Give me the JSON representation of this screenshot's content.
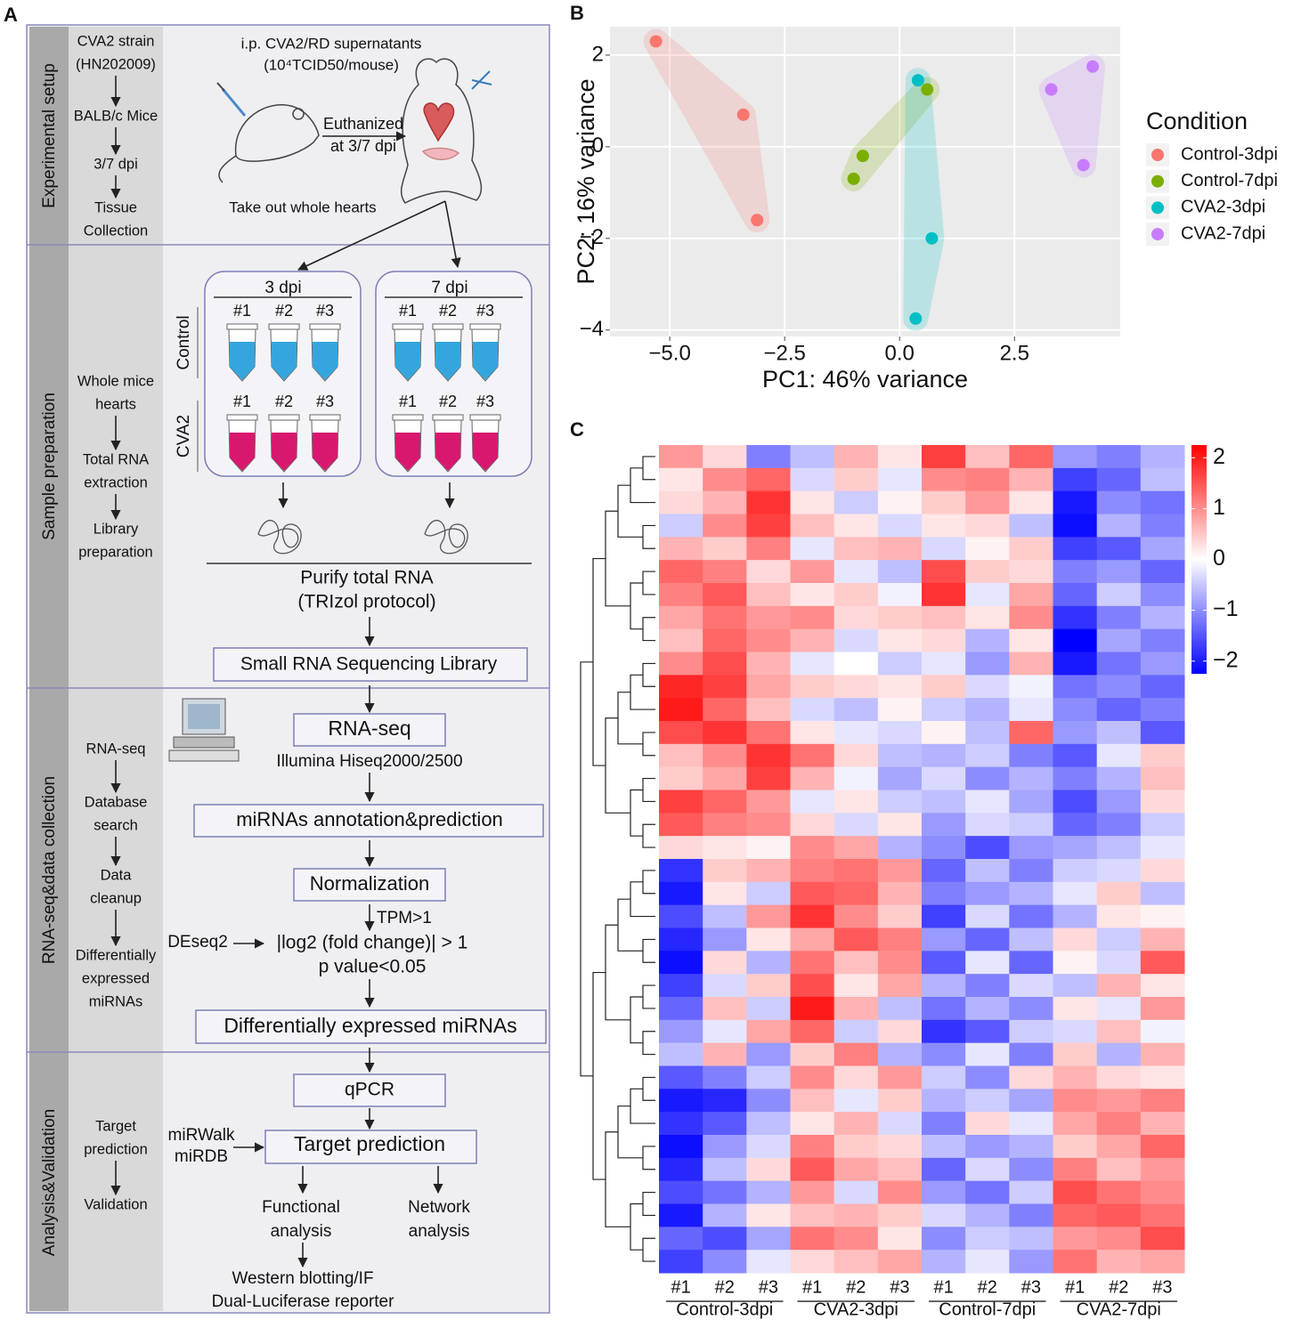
{
  "panel_labels": [
    "A",
    "B",
    "C"
  ],
  "workflow": {
    "sections": [
      {
        "title": "Experimental setup",
        "steps": [
          [
            "CVA2 strain",
            "(HN202009)"
          ],
          [
            "BALB/c Mice"
          ],
          [
            "3/7 dpi"
          ],
          [
            "Tissue",
            "Collection"
          ]
        ]
      },
      {
        "title": "Sample preparation",
        "steps": [
          [
            "Whole mice",
            "hearts"
          ],
          [
            "Total RNA",
            "extraction"
          ],
          [
            "Library",
            "preparation"
          ]
        ]
      },
      {
        "title": "RNA-seq&data collection",
        "steps": [
          [
            "RNA-seq"
          ],
          [
            "Database",
            "search"
          ],
          [
            "Data",
            "cleanup"
          ],
          [
            "Differentially",
            "expressed",
            "miRNAs"
          ]
        ]
      },
      {
        "title": "Analysis&Validation",
        "steps": [
          [
            "Target",
            "prediction"
          ],
          [
            "Validation"
          ]
        ]
      }
    ],
    "injection": "i.p. CVA2/RD supernatants",
    "dose": "(10⁴TCID50/mouse)",
    "euthanized": [
      "Euthanized",
      "at 3/7 dpi"
    ],
    "hearts": "Take out whole hearts",
    "timepoints": [
      "3 dpi",
      "7 dpi"
    ],
    "groups": [
      "Control",
      "CVA2"
    ],
    "replicates": [
      "#1",
      "#2",
      "#3"
    ],
    "purify": [
      "Purify total RNA",
      "(TRIzol protocol)"
    ],
    "library": "Small RNA Sequencing Library",
    "rnaseq": "RNA-seq",
    "illumina": "Illumina Hiseq2000/2500",
    "annotation": "miRNAs annotation&prediction",
    "normalization": "Normalization",
    "tpm": "TPM>1",
    "deseq": "DEseq2",
    "criteria": [
      "|log2 (fold change)| > 1",
      "p value<0.05"
    ],
    "dem": "Differentially expressed miRNAs",
    "qpcr": "qPCR",
    "tools": [
      "miRWalk",
      "miRDB"
    ],
    "target": "Target prediction",
    "functional": [
      "Functional",
      "analysis"
    ],
    "network": [
      "Network",
      "analysis"
    ],
    "validation": [
      "Western blotting/IF",
      "Dual-Luciferase reporter"
    ]
  },
  "chart_data": [
    {
      "type": "scatter",
      "xlabel": "PC1: 46% variance",
      "ylabel": "PC2: 16% variance",
      "legend_title": "Condition",
      "legend": "right",
      "xlim": [
        -6.3,
        4.8
      ],
      "ylim": [
        -4.14,
        2.62
      ],
      "xticks": [
        {
          "value": -5,
          "label": "−5.0"
        },
        {
          "value": -2.5,
          "label": "−2.5"
        },
        {
          "value": 0,
          "label": "0.0"
        },
        {
          "value": 2.5,
          "label": "2.5"
        }
      ],
      "yticks": [
        {
          "value": -4,
          "label": "−4"
        },
        {
          "value": -2,
          "label": "−2"
        },
        0,
        2
      ],
      "grid": true,
      "series": [
        {
          "name": "Control-3dpi",
          "color": "#F8766D",
          "x": [
            -5.3,
            -3.4,
            -3.1
          ],
          "y": [
            2.3,
            0.7,
            -1.6
          ]
        },
        {
          "name": "Control-7dpi",
          "color": "#7CAE00",
          "x": [
            -1.0,
            -0.8,
            0.6
          ],
          "y": [
            -0.7,
            -0.2,
            1.25
          ]
        },
        {
          "name": "CVA2-3dpi",
          "color": "#00BFC4",
          "x": [
            0.4,
            0.7,
            0.35
          ],
          "y": [
            1.45,
            -2.0,
            -3.75
          ]
        },
        {
          "name": "CVA2-7dpi",
          "color": "#C77CFF",
          "x": [
            3.3,
            4.2,
            4.0
          ],
          "y": [
            1.25,
            1.75,
            -0.4
          ]
        }
      ]
    },
    {
      "type": "heatmap",
      "columns": [
        "#1",
        "#2",
        "#3",
        "#1",
        "#2",
        "#3",
        "#1",
        "#2",
        "#3",
        "#1",
        "#2",
        "#3"
      ],
      "column_groups": [
        "Control-3dpi",
        "CVA2-3dpi",
        "Control-7dpi",
        "CVA2-7dpi"
      ],
      "colors": [
        "#0000ff",
        "#ffffff",
        "#ff0000"
      ],
      "zlim": [
        -2,
        2
      ],
      "colorbar_lim": [
        -2.25,
        2.25
      ],
      "colorbar_ticks": [
        {
          "value": -2,
          "label": "−2"
        },
        {
          "value": -1,
          "label": "−1"
        },
        0,
        1,
        2
      ],
      "values": [
        [
          0.8,
          0.3,
          -1.0,
          -0.5,
          0.6,
          0.2,
          1.5,
          0.5,
          1.2,
          -0.8,
          -1.0,
          -0.6
        ],
        [
          0.2,
          0.9,
          1.2,
          -0.3,
          0.4,
          -0.2,
          0.9,
          1.0,
          0.6,
          -1.5,
          -1.2,
          -0.5
        ],
        [
          0.3,
          0.6,
          1.6,
          0.2,
          -0.4,
          0.1,
          0.4,
          0.8,
          0.2,
          -1.8,
          -0.9,
          -1.1
        ],
        [
          -0.4,
          0.9,
          1.5,
          0.5,
          0.2,
          -0.3,
          0.2,
          0.3,
          -0.5,
          -1.9,
          -0.6,
          -1.0
        ],
        [
          0.6,
          0.4,
          1.0,
          -0.2,
          0.5,
          0.6,
          -0.3,
          0.1,
          0.4,
          -1.5,
          -1.3,
          -0.7
        ],
        [
          1.2,
          1.0,
          0.3,
          0.8,
          -0.2,
          -0.5,
          1.4,
          0.4,
          0.3,
          -1.0,
          -0.8,
          -1.2
        ],
        [
          1.0,
          1.3,
          0.5,
          0.2,
          0.4,
          -0.1,
          1.6,
          -0.2,
          0.7,
          -1.2,
          -0.4,
          -0.9
        ],
        [
          0.7,
          1.1,
          0.8,
          0.9,
          0.3,
          0.4,
          0.5,
          0.2,
          0.9,
          -1.6,
          -1.0,
          -0.6
        ],
        [
          0.5,
          1.2,
          0.9,
          0.6,
          -0.3,
          0.2,
          0.3,
          -0.6,
          0.2,
          -2.0,
          -0.7,
          -1.0
        ],
        [
          0.9,
          1.4,
          0.6,
          -0.2,
          0.0,
          -0.4,
          -0.2,
          -0.8,
          0.6,
          -1.8,
          -1.1,
          -0.8
        ],
        [
          1.7,
          1.5,
          0.7,
          0.4,
          0.3,
          0.2,
          0.4,
          -0.3,
          -0.1,
          -1.1,
          -0.9,
          -1.2
        ],
        [
          1.8,
          1.2,
          0.5,
          -0.3,
          -0.5,
          0.1,
          -0.4,
          -0.6,
          -0.2,
          -0.9,
          -1.2,
          -1.0
        ],
        [
          1.4,
          1.6,
          1.1,
          0.2,
          -0.2,
          -0.3,
          0.1,
          -0.5,
          1.2,
          -0.8,
          -0.5,
          -1.3
        ],
        [
          0.5,
          0.9,
          1.6,
          1.1,
          0.3,
          -0.5,
          -0.6,
          -0.4,
          -1.0,
          -1.3,
          -0.2,
          0.4
        ],
        [
          0.4,
          0.7,
          1.5,
          0.6,
          -0.1,
          -0.7,
          -0.3,
          -0.9,
          -0.6,
          -1.0,
          -0.6,
          0.5
        ],
        [
          1.5,
          1.2,
          0.8,
          -0.2,
          0.2,
          -0.4,
          -0.5,
          -0.2,
          -0.7,
          -1.4,
          -0.8,
          0.3
        ],
        [
          1.3,
          1.0,
          0.9,
          0.3,
          -0.3,
          0.2,
          -0.8,
          -0.3,
          -0.4,
          -1.2,
          -1.0,
          -0.4
        ],
        [
          0.3,
          0.2,
          0.1,
          0.9,
          0.7,
          -0.6,
          -0.9,
          -1.4,
          -0.8,
          -0.7,
          -0.5,
          -0.2
        ],
        [
          -1.6,
          0.4,
          0.6,
          1.0,
          1.1,
          0.8,
          -1.2,
          -0.5,
          -1.0,
          -0.4,
          -0.3,
          0.3
        ],
        [
          -1.8,
          0.2,
          -0.4,
          1.3,
          1.2,
          0.6,
          -1.0,
          -0.8,
          -0.6,
          -0.2,
          0.4,
          -0.5
        ],
        [
          -1.4,
          -0.5,
          0.8,
          1.6,
          0.9,
          0.4,
          -1.5,
          -0.3,
          -1.1,
          -0.6,
          0.2,
          0.1
        ],
        [
          -1.7,
          -0.8,
          0.2,
          0.7,
          1.3,
          1.0,
          -0.8,
          -1.2,
          -0.5,
          0.3,
          -0.4,
          0.6
        ],
        [
          -1.9,
          0.3,
          -0.6,
          1.1,
          0.5,
          0.9,
          -1.3,
          -0.2,
          -1.2,
          0.1,
          -0.3,
          1.3
        ],
        [
          -1.5,
          -0.3,
          0.4,
          1.4,
          0.2,
          0.7,
          -0.6,
          -1.0,
          -0.3,
          -0.5,
          0.6,
          0.2
        ],
        [
          -1.2,
          0.5,
          -0.4,
          1.8,
          0.6,
          -0.5,
          -1.1,
          -0.6,
          -0.9,
          0.2,
          -0.2,
          0.8
        ],
        [
          -0.8,
          -0.2,
          0.7,
          1.2,
          -0.4,
          0.3,
          -1.6,
          -1.3,
          -0.4,
          -0.3,
          0.5,
          -0.1
        ],
        [
          -0.5,
          0.6,
          -0.8,
          0.4,
          1.0,
          -0.6,
          -0.9,
          -0.2,
          -1.0,
          0.4,
          -0.6,
          0.6
        ],
        [
          -1.3,
          -1.0,
          -0.4,
          0.9,
          0.3,
          0.8,
          -0.4,
          -0.9,
          0.3,
          0.6,
          0.3,
          0.2
        ],
        [
          -1.8,
          -1.7,
          -0.9,
          0.5,
          -0.2,
          0.4,
          -0.6,
          -0.4,
          -0.7,
          0.9,
          0.8,
          1.0
        ],
        [
          -1.6,
          -1.3,
          -0.5,
          0.2,
          0.6,
          -0.3,
          -1.0,
          0.3,
          -0.2,
          0.7,
          1.0,
          0.6
        ],
        [
          -1.9,
          -0.8,
          -0.3,
          1.0,
          0.4,
          0.3,
          -0.5,
          -0.8,
          -0.6,
          0.4,
          0.7,
          1.2
        ],
        [
          -1.7,
          -0.5,
          0.3,
          1.3,
          0.7,
          0.5,
          -1.2,
          -0.3,
          -0.9,
          1.0,
          0.5,
          0.8
        ],
        [
          -1.4,
          -1.1,
          -0.6,
          0.8,
          -0.3,
          0.9,
          -0.8,
          -1.1,
          -0.4,
          1.4,
          1.1,
          0.9
        ],
        [
          -1.8,
          -0.6,
          0.2,
          0.5,
          0.6,
          0.4,
          -0.3,
          -0.6,
          -1.0,
          1.2,
          1.3,
          1.1
        ],
        [
          -1.2,
          -1.4,
          -0.7,
          1.1,
          0.9,
          0.2,
          -0.9,
          -0.4,
          -0.5,
          0.8,
          0.9,
          1.4
        ],
        [
          -1.5,
          -0.9,
          -0.2,
          0.3,
          0.5,
          0.7,
          -0.6,
          -0.2,
          -0.8,
          1.1,
          0.6,
          0.7
        ]
      ]
    }
  ]
}
